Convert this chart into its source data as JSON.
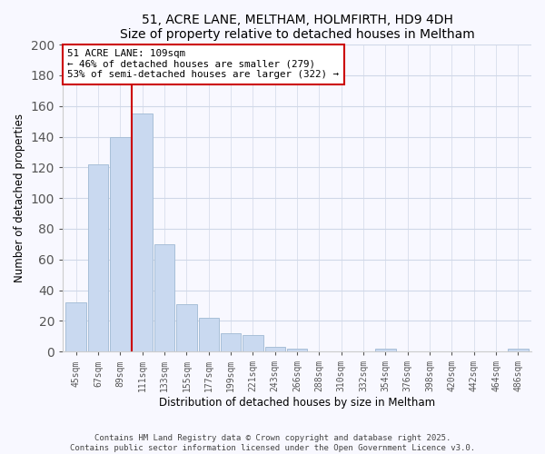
{
  "title": "51, ACRE LANE, MELTHAM, HOLMFIRTH, HD9 4DH",
  "subtitle": "Size of property relative to detached houses in Meltham",
  "xlabel": "Distribution of detached houses by size in Meltham",
  "ylabel": "Number of detached properties",
  "bin_labels": [
    "45sqm",
    "67sqm",
    "89sqm",
    "111sqm",
    "133sqm",
    "155sqm",
    "177sqm",
    "199sqm",
    "221sqm",
    "243sqm",
    "266sqm",
    "288sqm",
    "310sqm",
    "332sqm",
    "354sqm",
    "376sqm",
    "398sqm",
    "420sqm",
    "442sqm",
    "464sqm",
    "486sqm"
  ],
  "bar_values": [
    32,
    122,
    140,
    155,
    70,
    31,
    22,
    12,
    11,
    3,
    2,
    0,
    0,
    0,
    2,
    0,
    0,
    0,
    0,
    0,
    2
  ],
  "bar_color": "#c9d9f0",
  "bar_edge_color": "#a8bfd8",
  "vline_x_index": 3,
  "vline_color": "#cc0000",
  "annotation_line1": "51 ACRE LANE: 109sqm",
  "annotation_line2": "← 46% of detached houses are smaller (279)",
  "annotation_line3": "53% of semi-detached houses are larger (322) →",
  "annotation_box_color": "#ffffff",
  "annotation_box_edge": "#cc0000",
  "ylim": [
    0,
    200
  ],
  "yticks": [
    0,
    20,
    40,
    60,
    80,
    100,
    120,
    140,
    160,
    180,
    200
  ],
  "footer1": "Contains HM Land Registry data © Crown copyright and database right 2025.",
  "footer2": "Contains public sector information licensed under the Open Government Licence v3.0.",
  "bg_color": "#f8f8ff",
  "grid_color": "#d0d8e8"
}
